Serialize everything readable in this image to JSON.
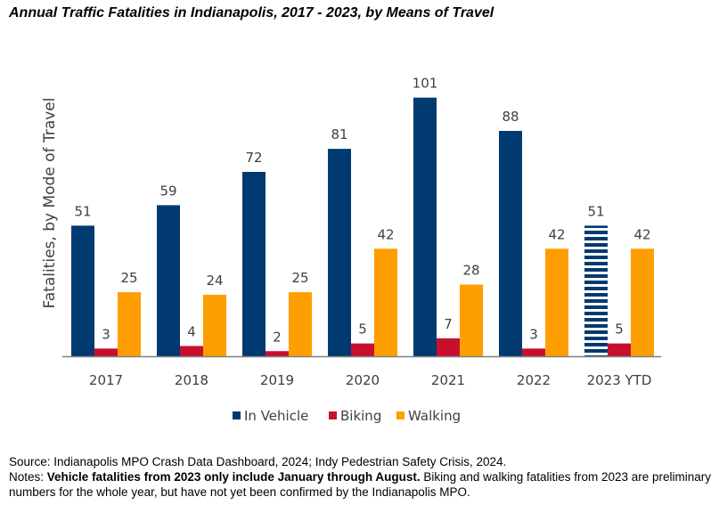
{
  "title": "Annual Traffic Fatalities in Indianapolis, 2017 - 2023, by Means of Travel",
  "colors": {
    "in_vehicle": "#003A70",
    "biking": "#C8102E",
    "walking": "#FF9E00",
    "axis": "#7F7F7F",
    "text": "#404040"
  },
  "chart_data": {
    "type": "bar",
    "categories": [
      "2017",
      "2018",
      "2019",
      "2020",
      "2021",
      "2022",
      "2023 YTD"
    ],
    "series": [
      {
        "name": "In Vehicle",
        "values": [
          51,
          59,
          72,
          81,
          101,
          88,
          51
        ],
        "color": "#003A70",
        "striped_last": true
      },
      {
        "name": "Biking",
        "values": [
          3,
          4,
          2,
          5,
          7,
          3,
          5
        ],
        "color": "#C8102E"
      },
      {
        "name": "Walking",
        "values": [
          25,
          24,
          25,
          42,
          28,
          42,
          42
        ],
        "color": "#FF9E00"
      }
    ],
    "ylabel": "Fatalities, by Mode of Travel",
    "xlabel": "",
    "ylim": [
      0,
      110
    ],
    "grid": false,
    "legend": "bottom"
  },
  "notes": {
    "source": "Source: Indianapolis MPO Crash Data Dashboard, 2024; Indy Pedestrian Safety Crisis, 2024.",
    "notes_prefix": "Notes: ",
    "notes_bold": "Vehicle fatalities from 2023 only include January through August.",
    "notes_rest": " Biking and walking fatalities from 2023 are preliminary numbers for the whole year, but have not yet been confirmed by the Indianapolis MPO."
  }
}
